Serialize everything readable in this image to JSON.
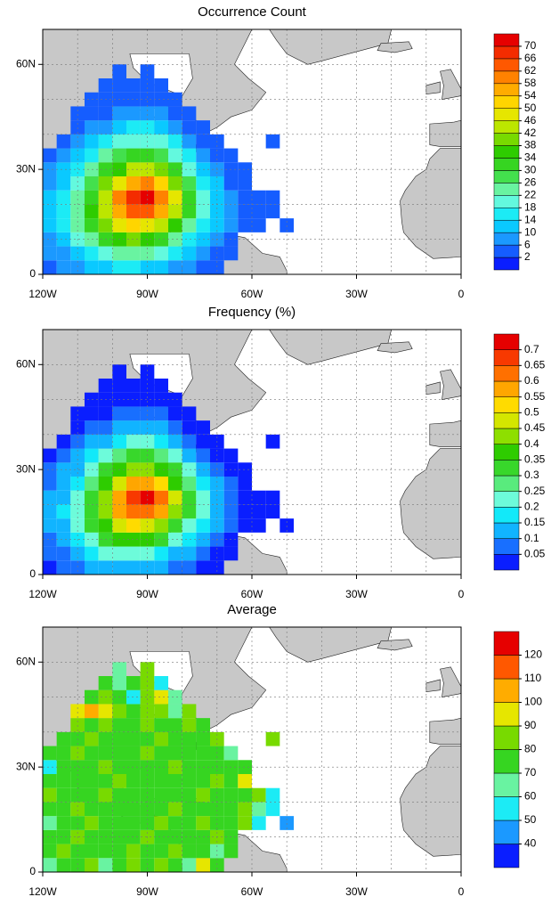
{
  "chart_data": [
    {
      "type": "heatmap",
      "title": "Occurrence Count",
      "x": [
        -118,
        -114,
        -110,
        -106,
        -102,
        -98,
        -94,
        -90,
        -86,
        -82,
        -78,
        -74,
        -70,
        -66,
        -62,
        -58,
        -54,
        -50
      ],
      "y": [
        2,
        6,
        10,
        14,
        18,
        22,
        26,
        30,
        34,
        38,
        42,
        46,
        50,
        54,
        58
      ],
      "values": [
        [
          4,
          6,
          8,
          10,
          12,
          14,
          14,
          12,
          10,
          8,
          6,
          4,
          3,
          null,
          null,
          null,
          null,
          null
        ],
        [
          6,
          8,
          12,
          16,
          20,
          22,
          24,
          22,
          18,
          14,
          10,
          6,
          4,
          3,
          null,
          null,
          null,
          null
        ],
        [
          8,
          12,
          18,
          24,
          30,
          36,
          38,
          36,
          30,
          24,
          16,
          10,
          6,
          4,
          null,
          null,
          null,
          null
        ],
        [
          10,
          14,
          22,
          30,
          38,
          46,
          50,
          48,
          42,
          34,
          24,
          16,
          10,
          6,
          3,
          2,
          null,
          2
        ],
        [
          12,
          16,
          24,
          34,
          44,
          56,
          62,
          64,
          56,
          44,
          32,
          20,
          12,
          8,
          4,
          3,
          2,
          null
        ],
        [
          10,
          14,
          22,
          32,
          44,
          58,
          66,
          70,
          60,
          46,
          32,
          20,
          12,
          6,
          4,
          2,
          2,
          null
        ],
        [
          8,
          12,
          18,
          28,
          38,
          48,
          56,
          58,
          50,
          38,
          26,
          16,
          10,
          5,
          2,
          null,
          null,
          null
        ],
        [
          6,
          10,
          14,
          22,
          30,
          36,
          42,
          44,
          38,
          30,
          20,
          12,
          8,
          4,
          2,
          null,
          null,
          null
        ],
        [
          4,
          6,
          10,
          16,
          22,
          26,
          30,
          30,
          26,
          20,
          14,
          8,
          4,
          2,
          null,
          null,
          null,
          null
        ],
        [
          null,
          4,
          6,
          10,
          14,
          18,
          20,
          20,
          18,
          14,
          8,
          4,
          2,
          null,
          null,
          null,
          2,
          null
        ],
        [
          null,
          null,
          4,
          6,
          8,
          12,
          14,
          14,
          12,
          8,
          4,
          2,
          null,
          null,
          null,
          null,
          null,
          null
        ],
        [
          null,
          null,
          2,
          4,
          4,
          6,
          8,
          8,
          6,
          4,
          2,
          null,
          null,
          null,
          null,
          null,
          null,
          null
        ],
        [
          null,
          null,
          null,
          2,
          2,
          4,
          4,
          4,
          2,
          2,
          null,
          null,
          null,
          null,
          null,
          null,
          null,
          null
        ],
        [
          null,
          null,
          null,
          null,
          2,
          2,
          2,
          2,
          2,
          null,
          null,
          null,
          null,
          null,
          null,
          null,
          null,
          null
        ],
        [
          null,
          null,
          null,
          null,
          null,
          2,
          null,
          2,
          null,
          null,
          null,
          null,
          null,
          null,
          null,
          null,
          null,
          null
        ]
      ],
      "xlim": [
        -120,
        0
      ],
      "ylim": [
        0,
        70
      ],
      "xticks": [
        {
          "value": -120,
          "label": "120W"
        },
        {
          "value": -90,
          "label": "90W"
        },
        {
          "value": -60,
          "label": "60W"
        },
        {
          "value": -30,
          "label": "30W"
        },
        0
      ],
      "yticks": [
        0,
        {
          "value": 30,
          "label": "30N"
        },
        {
          "value": 60,
          "label": "60N"
        }
      ],
      "colorbar_ticks": [
        2,
        6,
        10,
        14,
        18,
        22,
        26,
        30,
        34,
        38,
        42,
        46,
        50,
        54,
        58,
        62,
        66,
        70
      ],
      "colors": [
        "#0a1eff",
        "#1e90ff",
        "#00e5ff",
        "#7fffd4",
        "#3cdc3c",
        "#2ecc00",
        "#b4e600",
        "#ffe600",
        "#ff9b00",
        "#ff5000",
        "#e60000"
      ]
    },
    {
      "type": "heatmap",
      "title": "Frequency (%)",
      "x": [
        -118,
        -114,
        -110,
        -106,
        -102,
        -98,
        -94,
        -90,
        -86,
        -82,
        -78,
        -74,
        -70,
        -66,
        -62,
        -58,
        -54,
        -50
      ],
      "y": [
        2,
        6,
        10,
        14,
        18,
        22,
        26,
        30,
        34,
        38,
        42,
        46,
        50,
        54,
        58
      ],
      "values": [
        [
          0.04,
          0.06,
          0.08,
          0.1,
          0.12,
          0.14,
          0.14,
          0.12,
          0.1,
          0.08,
          0.06,
          0.04,
          0.03,
          null,
          null,
          null,
          null,
          null
        ],
        [
          0.06,
          0.08,
          0.12,
          0.16,
          0.2,
          0.22,
          0.24,
          0.22,
          0.18,
          0.14,
          0.1,
          0.06,
          0.04,
          0.03,
          null,
          null,
          null,
          null
        ],
        [
          0.08,
          0.12,
          0.18,
          0.24,
          0.3,
          0.36,
          0.38,
          0.36,
          0.3,
          0.24,
          0.16,
          0.1,
          0.06,
          0.04,
          null,
          null,
          null,
          null
        ],
        [
          0.1,
          0.14,
          0.22,
          0.3,
          0.38,
          0.46,
          0.5,
          0.48,
          0.42,
          0.34,
          0.24,
          0.16,
          0.1,
          0.06,
          0.03,
          0.02,
          null,
          0.02
        ],
        [
          0.12,
          0.16,
          0.24,
          0.34,
          0.44,
          0.56,
          0.62,
          0.64,
          0.56,
          0.44,
          0.32,
          0.2,
          0.12,
          0.08,
          0.04,
          0.03,
          0.02,
          null
        ],
        [
          0.1,
          0.14,
          0.22,
          0.32,
          0.44,
          0.58,
          0.66,
          0.7,
          0.6,
          0.46,
          0.32,
          0.2,
          0.12,
          0.06,
          0.04,
          0.02,
          0.02,
          null
        ],
        [
          0.08,
          0.12,
          0.18,
          0.28,
          0.38,
          0.48,
          0.56,
          0.58,
          0.5,
          0.38,
          0.26,
          0.16,
          0.1,
          0.05,
          0.02,
          null,
          null,
          null
        ],
        [
          0.06,
          0.1,
          0.14,
          0.22,
          0.3,
          0.36,
          0.42,
          0.44,
          0.38,
          0.3,
          0.2,
          0.12,
          0.08,
          0.04,
          0.02,
          null,
          null,
          null
        ],
        [
          0.04,
          0.06,
          0.1,
          0.16,
          0.22,
          0.26,
          0.3,
          0.3,
          0.26,
          0.2,
          0.14,
          0.08,
          0.04,
          0.02,
          null,
          null,
          null,
          null
        ],
        [
          null,
          0.04,
          0.06,
          0.1,
          0.14,
          0.18,
          0.2,
          0.2,
          0.18,
          0.14,
          0.08,
          0.04,
          0.02,
          null,
          null,
          null,
          0.02,
          null
        ],
        [
          null,
          null,
          0.04,
          0.06,
          0.08,
          0.12,
          0.14,
          0.14,
          0.12,
          0.08,
          0.04,
          0.02,
          null,
          null,
          null,
          null,
          null,
          null
        ],
        [
          null,
          null,
          0.02,
          0.04,
          0.04,
          0.06,
          0.08,
          0.08,
          0.06,
          0.04,
          0.02,
          null,
          null,
          null,
          null,
          null,
          null,
          null
        ],
        [
          null,
          null,
          null,
          0.02,
          0.02,
          0.04,
          0.04,
          0.04,
          0.02,
          0.02,
          null,
          null,
          null,
          null,
          null,
          null,
          null,
          null
        ],
        [
          null,
          null,
          null,
          null,
          0.02,
          0.02,
          0.02,
          0.02,
          0.02,
          null,
          null,
          null,
          null,
          null,
          null,
          null,
          null,
          null
        ],
        [
          null,
          null,
          null,
          null,
          null,
          0.02,
          null,
          0.02,
          null,
          null,
          null,
          null,
          null,
          null,
          null,
          null,
          null,
          null
        ]
      ],
      "xlim": [
        -120,
        0
      ],
      "ylim": [
        0,
        70
      ],
      "xticks": [
        {
          "value": -120,
          "label": "120W"
        },
        {
          "value": -90,
          "label": "90W"
        },
        {
          "value": -60,
          "label": "60W"
        },
        {
          "value": -30,
          "label": "30W"
        },
        0
      ],
      "yticks": [
        0,
        {
          "value": 30,
          "label": "30N"
        },
        {
          "value": 60,
          "label": "60N"
        }
      ],
      "colorbar_ticks": [
        0.05,
        0.1,
        0.15,
        0.2,
        0.25,
        0.3,
        0.35,
        0.4,
        0.45,
        0.5,
        0.55,
        0.6,
        0.65,
        0.7
      ],
      "colors": [
        "#0a1eff",
        "#1e90ff",
        "#00e5ff",
        "#7fffd4",
        "#3cdc3c",
        "#2ecc00",
        "#b4e600",
        "#ffe600",
        "#ff9b00",
        "#ff5000",
        "#e60000"
      ]
    },
    {
      "type": "heatmap",
      "title": "Average",
      "x": [
        -118,
        -114,
        -110,
        -106,
        -102,
        -98,
        -94,
        -90,
        -86,
        -82,
        -78,
        -74,
        -70,
        -66,
        -62,
        -58,
        -54,
        -50
      ],
      "y": [
        2,
        6,
        10,
        14,
        18,
        22,
        26,
        30,
        34,
        38,
        42,
        46,
        50,
        54,
        58
      ],
      "values": [
        [
          60,
          75,
          70,
          80,
          65,
          75,
          85,
          70,
          80,
          75,
          60,
          90,
          70,
          null,
          null,
          null,
          null,
          null
        ],
        [
          70,
          80,
          75,
          72,
          78,
          70,
          80,
          76,
          74,
          80,
          72,
          78,
          68,
          75,
          null,
          null,
          null,
          null
        ],
        [
          78,
          72,
          80,
          75,
          70,
          78,
          74,
          80,
          76,
          72,
          78,
          74,
          80,
          70,
          null,
          null,
          null,
          null
        ],
        [
          65,
          78,
          74,
          80,
          76,
          72,
          78,
          74,
          80,
          76,
          72,
          80,
          74,
          78,
          85,
          55,
          null,
          45
        ],
        [
          72,
          76,
          80,
          74,
          78,
          76,
          72,
          78,
          74,
          80,
          76,
          72,
          78,
          74,
          80,
          60,
          50,
          null
        ],
        [
          80,
          74,
          76,
          72,
          80,
          74,
          78,
          76,
          72,
          78,
          74,
          80,
          76,
          72,
          78,
          85,
          55,
          null
        ],
        [
          70,
          78,
          72,
          76,
          74,
          80,
          76,
          74,
          78,
          72,
          76,
          74,
          80,
          78,
          90,
          null,
          null,
          null
        ],
        [
          50,
          76,
          78,
          74,
          80,
          72,
          78,
          76,
          74,
          80,
          72,
          76,
          74,
          70,
          75,
          null,
          null,
          null
        ],
        [
          76,
          72,
          80,
          76,
          72,
          78,
          74,
          80,
          76,
          72,
          78,
          74,
          70,
          60,
          null,
          null,
          null,
          null
        ],
        [
          null,
          70,
          74,
          80,
          76,
          72,
          78,
          74,
          80,
          76,
          72,
          78,
          85,
          null,
          null,
          null,
          80,
          null
        ],
        [
          null,
          null,
          85,
          78,
          80,
          74,
          76,
          82,
          78,
          74,
          80,
          70,
          null,
          null,
          null,
          null,
          null,
          null
        ],
        [
          null,
          null,
          90,
          100,
          95,
          80,
          76,
          88,
          80,
          60,
          85,
          null,
          null,
          null,
          null,
          null,
          null,
          null
        ],
        [
          null,
          null,
          null,
          70,
          85,
          75,
          55,
          80,
          90,
          65,
          null,
          null,
          null,
          null,
          null,
          null,
          null,
          null
        ],
        [
          null,
          null,
          null,
          null,
          75,
          60,
          70,
          80,
          55,
          null,
          null,
          null,
          null,
          null,
          null,
          null,
          null,
          null
        ],
        [
          null,
          null,
          null,
          null,
          null,
          60,
          null,
          80,
          null,
          null,
          null,
          null,
          null,
          null,
          null,
          null,
          null,
          null
        ]
      ],
      "xlim": [
        -120,
        0
      ],
      "ylim": [
        0,
        70
      ],
      "xticks": [
        {
          "value": -120,
          "label": "120W"
        },
        {
          "value": -90,
          "label": "90W"
        },
        {
          "value": -60,
          "label": "60W"
        },
        {
          "value": -30,
          "label": "30W"
        },
        0
      ],
      "yticks": [
        0,
        {
          "value": 30,
          "label": "30N"
        },
        {
          "value": 60,
          "label": "60N"
        }
      ],
      "colorbar_ticks": [
        40,
        50,
        60,
        70,
        80,
        90,
        100,
        110,
        120
      ],
      "colors": [
        "#0a1eff",
        "#1e90ff",
        "#00e5ff",
        "#7fffd4",
        "#3cdc3c",
        "#2ecc00",
        "#b4e600",
        "#ffe600",
        "#ff9b00",
        "#ff5000",
        "#e60000"
      ]
    }
  ]
}
